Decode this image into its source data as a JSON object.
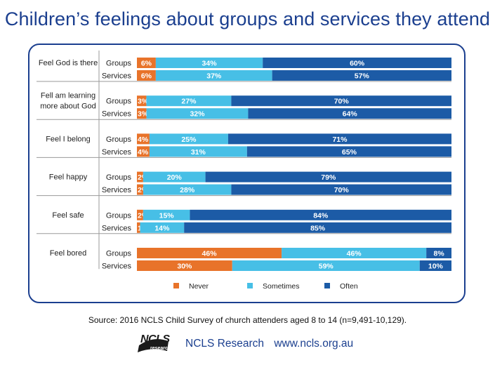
{
  "title": "Children’s feelings about groups and services they attend",
  "source": "Source: 2016 NCLS Child Survey of church attenders aged 8 to 14 (n=9,491-10,129).",
  "footer": {
    "logo_text": "NCLS",
    "logo_subtext": "research",
    "org_name": "NCLS Research",
    "url": "www.ncls.org.au"
  },
  "colors": {
    "never": "#e8732a",
    "sometimes": "#47bfe6",
    "often": "#1c5ba6",
    "frame": "#1b3f8f"
  },
  "chart_data": {
    "type": "bar",
    "orientation": "horizontal",
    "stacked": true,
    "normalized": true,
    "legend_position": "bottom",
    "series_names": [
      "Never",
      "Sometimes",
      "Often"
    ],
    "groups": [
      {
        "label": "Feel God is there",
        "rows": [
          {
            "label": "Groups",
            "values": [
              6,
              34,
              60
            ]
          },
          {
            "label": "Services",
            "values": [
              6,
              37,
              57
            ]
          }
        ]
      },
      {
        "label": "Fell am learning more about God",
        "rows": [
          {
            "label": "Groups",
            "values": [
              3,
              27,
              70
            ]
          },
          {
            "label": "Services",
            "values": [
              3,
              32,
              64
            ]
          }
        ]
      },
      {
        "label": "Feel I belong",
        "rows": [
          {
            "label": "Groups",
            "values": [
              4,
              25,
              71
            ]
          },
          {
            "label": "Services",
            "values": [
              4,
              31,
              65
            ]
          }
        ]
      },
      {
        "label": "Feel happy",
        "rows": [
          {
            "label": "Groups",
            "values": [
              2,
              20,
              79
            ]
          },
          {
            "label": "Services",
            "values": [
              2,
              28,
              70
            ]
          }
        ]
      },
      {
        "label": "Feel safe",
        "rows": [
          {
            "label": "Groups",
            "values": [
              2,
              15,
              84
            ]
          },
          {
            "label": "Services",
            "values": [
              1,
              14,
              85
            ]
          }
        ]
      },
      {
        "label": "Feel bored",
        "rows": [
          {
            "label": "Groups",
            "values": [
              46,
              46,
              8
            ]
          },
          {
            "label": "Services",
            "values": [
              30,
              59,
              10
            ]
          }
        ]
      }
    ]
  }
}
